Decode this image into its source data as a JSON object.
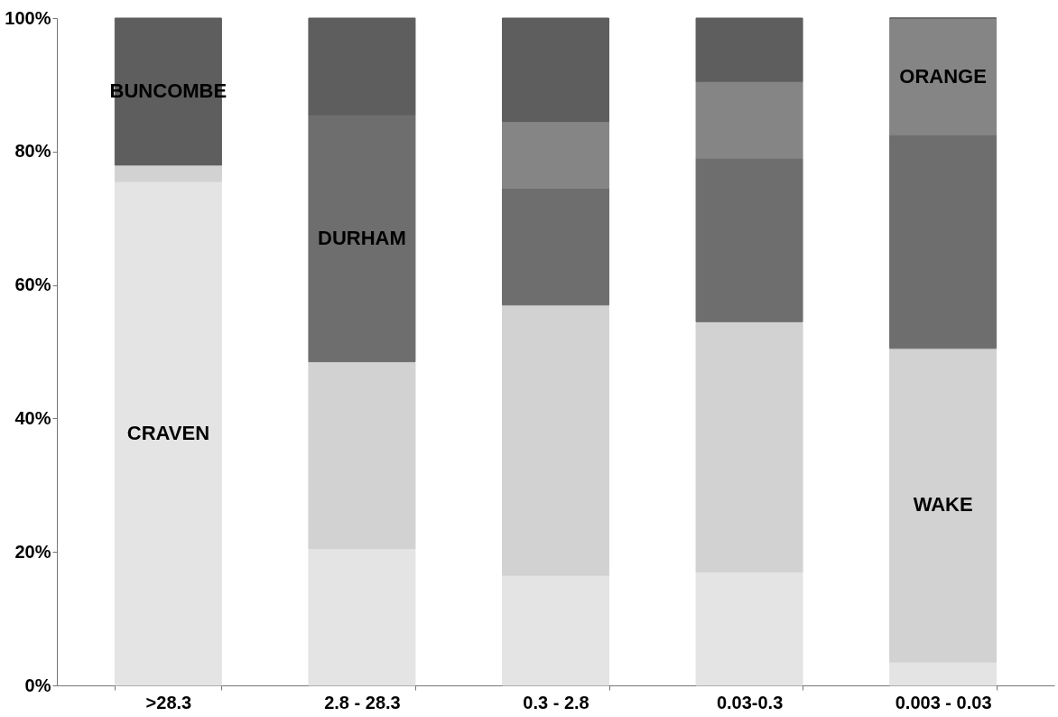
{
  "chart_data": {
    "type": "bar",
    "stacked": true,
    "categories": [
      ">28.3",
      "2.8 - 28.3",
      "0.3 - 2.8",
      "0.03-0.3",
      "0.003 - 0.03"
    ],
    "series": [
      {
        "name": "CRAVEN",
        "color": "#e4e4e4",
        "values": [
          75.5,
          20.5,
          16.5,
          17,
          3.5
        ]
      },
      {
        "name": "WAKE",
        "color": "#d2d2d2",
        "values": [
          2.5,
          28,
          40.5,
          37.5,
          47
        ]
      },
      {
        "name": "DURHAM",
        "color": "#6e6e6e",
        "values": [
          0,
          37,
          17.5,
          24.5,
          32
        ]
      },
      {
        "name": "ORANGE",
        "color": "#858585",
        "values": [
          0,
          0,
          10,
          11.5,
          17.5
        ]
      },
      {
        "name": "BUNCOMBE",
        "color": "#5e5e5e",
        "values": [
          22,
          14.5,
          15.5,
          9.5,
          0
        ]
      }
    ],
    "ylim": [
      0,
      100
    ],
    "yticks": [
      {
        "value": 0,
        "label": "0%"
      },
      {
        "value": 20,
        "label": "20%"
      },
      {
        "value": 40,
        "label": "40%"
      },
      {
        "value": 60,
        "label": "60%"
      },
      {
        "value": 80,
        "label": "80%"
      },
      {
        "value": 100,
        "label": "100%"
      }
    ],
    "grid": false
  }
}
